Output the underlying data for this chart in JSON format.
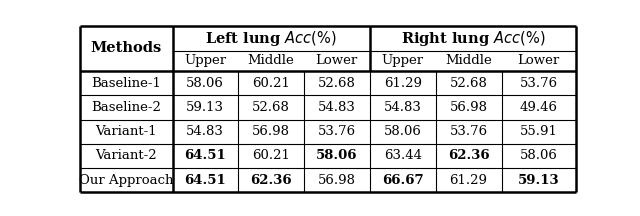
{
  "col_headers_sub": [
    "Upper",
    "Middle",
    "Lower",
    "Upper",
    "Middle",
    "Lower"
  ],
  "row_header": "Methods",
  "rows": [
    {
      "name": "Baseline-1",
      "vals": [
        "58.06",
        "60.21",
        "52.68",
        "61.29",
        "52.68",
        "53.76"
      ],
      "bold": [
        false,
        false,
        false,
        false,
        false,
        false
      ]
    },
    {
      "name": "Baseline-2",
      "vals": [
        "59.13",
        "52.68",
        "54.83",
        "54.83",
        "56.98",
        "49.46"
      ],
      "bold": [
        false,
        false,
        false,
        false,
        false,
        false
      ]
    },
    {
      "name": "Variant-1",
      "vals": [
        "54.83",
        "56.98",
        "53.76",
        "58.06",
        "53.76",
        "55.91"
      ],
      "bold": [
        false,
        false,
        false,
        false,
        false,
        false
      ]
    },
    {
      "name": "Variant-2",
      "vals": [
        "64.51",
        "60.21",
        "58.06",
        "63.44",
        "62.36",
        "58.06"
      ],
      "bold": [
        true,
        false,
        true,
        false,
        true,
        false
      ]
    },
    {
      "name": "Our Approach",
      "vals": [
        "64.51",
        "62.36",
        "56.98",
        "66.67",
        "61.29",
        "59.13"
      ],
      "bold": [
        true,
        true,
        false,
        true,
        false,
        true
      ]
    }
  ],
  "col_bounds": [
    0.0,
    0.187,
    0.318,
    0.451,
    0.584,
    0.717,
    0.85,
    1.0
  ],
  "fs_header": 10.5,
  "fs_sub": 9.5,
  "fs_data": 9.5
}
